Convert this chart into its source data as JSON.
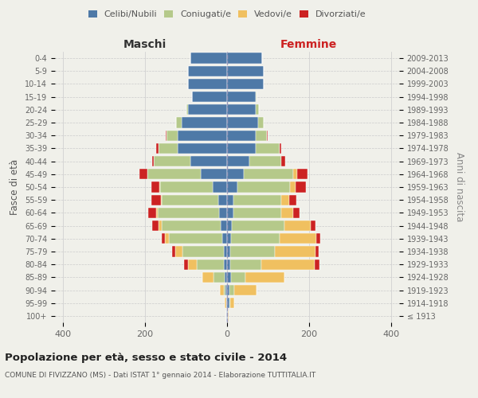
{
  "age_groups": [
    "100+",
    "95-99",
    "90-94",
    "85-89",
    "80-84",
    "75-79",
    "70-74",
    "65-69",
    "60-64",
    "55-59",
    "50-54",
    "45-49",
    "40-44",
    "35-39",
    "30-34",
    "25-29",
    "20-24",
    "15-19",
    "10-14",
    "5-9",
    "0-4"
  ],
  "birth_years": [
    "≤ 1913",
    "1914-1918",
    "1919-1923",
    "1924-1928",
    "1929-1933",
    "1934-1938",
    "1939-1943",
    "1944-1948",
    "1949-1953",
    "1954-1958",
    "1959-1963",
    "1964-1968",
    "1969-1973",
    "1974-1978",
    "1979-1983",
    "1984-1988",
    "1989-1993",
    "1994-1998",
    "1999-2003",
    "2004-2008",
    "2009-2013"
  ],
  "colors": {
    "celibi": "#4e79a7",
    "coniugati": "#b5c98a",
    "vedovi": "#f0c060",
    "divorziati": "#cc2222"
  },
  "males": {
    "celibi": [
      2,
      2,
      3,
      5,
      8,
      8,
      12,
      15,
      20,
      22,
      35,
      65,
      90,
      120,
      120,
      110,
      95,
      85,
      95,
      95,
      90
    ],
    "coniugati": [
      0,
      0,
      5,
      28,
      65,
      100,
      130,
      145,
      150,
      138,
      128,
      130,
      88,
      48,
      28,
      14,
      4,
      1,
      0,
      0,
      0
    ],
    "vedovi": [
      0,
      3,
      10,
      28,
      22,
      18,
      10,
      8,
      4,
      2,
      2,
      0,
      0,
      0,
      0,
      0,
      0,
      0,
      0,
      0,
      0
    ],
    "divorziati": [
      0,
      0,
      0,
      0,
      10,
      8,
      8,
      14,
      18,
      22,
      20,
      18,
      5,
      5,
      2,
      0,
      0,
      0,
      0,
      0,
      0
    ]
  },
  "females": {
    "nubili": [
      2,
      5,
      5,
      10,
      8,
      8,
      10,
      12,
      15,
      15,
      25,
      40,
      55,
      70,
      70,
      75,
      70,
      70,
      90,
      90,
      85
    ],
    "coniugate": [
      0,
      2,
      12,
      35,
      75,
      108,
      118,
      128,
      118,
      118,
      128,
      122,
      78,
      58,
      28,
      14,
      8,
      2,
      0,
      0,
      0
    ],
    "vedove": [
      2,
      10,
      55,
      95,
      130,
      100,
      90,
      65,
      28,
      18,
      14,
      10,
      0,
      0,
      0,
      0,
      0,
      0,
      0,
      0,
      0
    ],
    "divorziate": [
      0,
      0,
      0,
      0,
      12,
      8,
      10,
      10,
      15,
      18,
      25,
      25,
      8,
      5,
      2,
      0,
      0,
      0,
      0,
      0,
      0
    ]
  },
  "xlim": 420,
  "title": "Popolazione per età, sesso e stato civile - 2014",
  "subtitle": "COMUNE DI FIVIZZANO (MS) - Dati ISTAT 1° gennaio 2014 - Elaborazione TUTTITALIA.IT",
  "xlabel_left": "Maschi",
  "xlabel_right": "Femmine",
  "ylabel": "Fasce di età",
  "ylabel_right": "Anni di nascita",
  "legend_labels": [
    "Celibi/Nubili",
    "Coniugati/e",
    "Vedovi/e",
    "Divorziati/e"
  ],
  "bg_color": "#f0f0ea",
  "plot_bg": "#f0f0ea"
}
